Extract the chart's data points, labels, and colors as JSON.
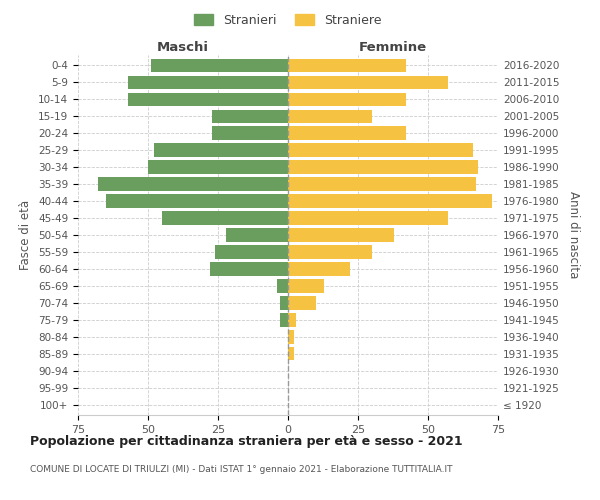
{
  "age_groups": [
    "100+",
    "95-99",
    "90-94",
    "85-89",
    "80-84",
    "75-79",
    "70-74",
    "65-69",
    "60-64",
    "55-59",
    "50-54",
    "45-49",
    "40-44",
    "35-39",
    "30-34",
    "25-29",
    "20-24",
    "15-19",
    "10-14",
    "5-9",
    "0-4"
  ],
  "birth_years": [
    "≤ 1920",
    "1921-1925",
    "1926-1930",
    "1931-1935",
    "1936-1940",
    "1941-1945",
    "1946-1950",
    "1951-1955",
    "1956-1960",
    "1961-1965",
    "1966-1970",
    "1971-1975",
    "1976-1980",
    "1981-1985",
    "1986-1990",
    "1991-1995",
    "1996-2000",
    "2001-2005",
    "2006-2010",
    "2011-2015",
    "2016-2020"
  ],
  "males": [
    0,
    0,
    0,
    0,
    0,
    3,
    3,
    4,
    28,
    26,
    22,
    45,
    65,
    68,
    50,
    48,
    27,
    27,
    57,
    57,
    49
  ],
  "females": [
    0,
    0,
    0,
    2,
    2,
    3,
    10,
    13,
    22,
    30,
    38,
    57,
    73,
    67,
    68,
    66,
    42,
    30,
    42,
    57,
    42
  ],
  "male_color": "#6a9e5e",
  "female_color": "#f5c242",
  "title": "Popolazione per cittadinanza straniera per età e sesso - 2021",
  "subtitle": "COMUNE DI LOCATE DI TRIULZI (MI) - Dati ISTAT 1° gennaio 2021 - Elaborazione TUTTITALIA.IT",
  "xlabel_left": "Maschi",
  "xlabel_right": "Femmine",
  "ylabel_left": "Fasce di età",
  "ylabel_right": "Anni di nascita",
  "legend_male": "Stranieri",
  "legend_female": "Straniere",
  "xlim": 75,
  "background_color": "#ffffff",
  "grid_color": "#cccccc",
  "text_color": "#555555",
  "header_color": "#444444",
  "title_color": "#222222"
}
